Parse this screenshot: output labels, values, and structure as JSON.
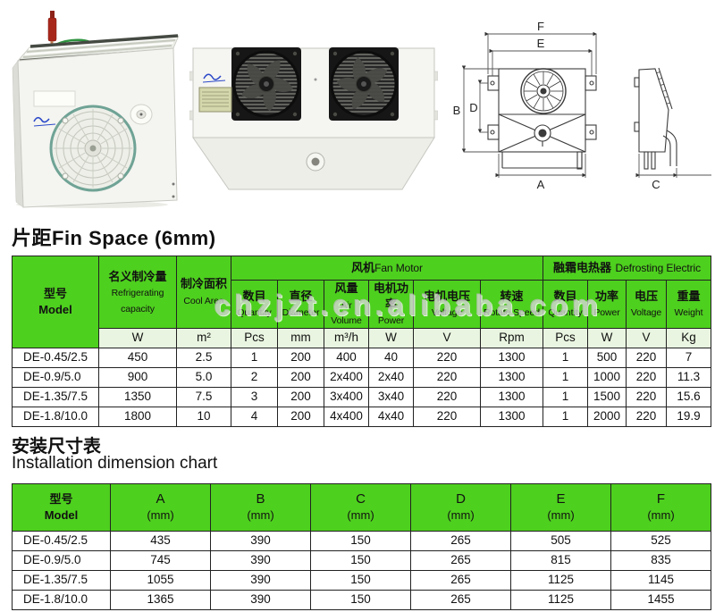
{
  "watermark": "chzjzt.en.alibaba.com",
  "colors": {
    "header_green": "#4ed01e",
    "units_green": "#e9f5e0",
    "logo_blue": "#2b49c8"
  },
  "section_fin": {
    "title": "片距Fin Space (6mm)"
  },
  "section_install": {
    "title_cn": "安装尺寸表",
    "title_en": "Installation dimension chart"
  },
  "diagram": {
    "labels": {
      "a": "A",
      "b": "B",
      "c": "C",
      "d": "D",
      "e": "E",
      "f": "F"
    }
  },
  "table1": {
    "model": {
      "cn": "型号",
      "en": "Model"
    },
    "refrigerating": {
      "cn": "名义制冷量",
      "en1": "Refrigerating",
      "en2": "capacity",
      "unit": "W"
    },
    "cool_area": {
      "cn": "制冷面积",
      "en": "Cool Area",
      "unit": "m²"
    },
    "group_fan": {
      "cn": "风机",
      "en": "Fan Motor"
    },
    "group_defrost": {
      "cn": "融霜电热器",
      "en": "Defrosting Electric"
    },
    "columns": [
      {
        "cn": "数目",
        "en": "Quantity",
        "unit": "Pcs"
      },
      {
        "cn": "直径",
        "en": "Diameter",
        "unit": "mm"
      },
      {
        "cn": "风量",
        "en": "Air Volume",
        "unit": "m³/h"
      },
      {
        "cn": "电机功率",
        "en": "Power",
        "unit": "W"
      },
      {
        "cn": "电机电压",
        "en": "Voltage",
        "unit": "V"
      },
      {
        "cn": "转速",
        "en": "Rotate Speed",
        "unit": "Rpm"
      },
      {
        "cn": "数目",
        "en": "Quantity",
        "unit": "Pcs"
      },
      {
        "cn": "功率",
        "en": "Power",
        "unit": "W"
      },
      {
        "cn": "电压",
        "en": "Voltage",
        "unit": "V"
      },
      {
        "cn": "重量",
        "en": "Weight",
        "unit": "Kg"
      }
    ],
    "rows": [
      [
        "DE-0.45/2.5",
        "450",
        "2.5",
        "1",
        "200",
        "400",
        "40",
        "220",
        "1300",
        "1",
        "500",
        "220",
        "7"
      ],
      [
        "DE-0.9/5.0",
        "900",
        "5.0",
        "2",
        "200",
        "2x400",
        "2x40",
        "220",
        "1300",
        "1",
        "1000",
        "220",
        "11.3"
      ],
      [
        "DE-1.35/7.5",
        "1350",
        "7.5",
        "3",
        "200",
        "3x400",
        "3x40",
        "220",
        "1300",
        "1",
        "1500",
        "220",
        "15.6"
      ],
      [
        "DE-1.8/10.0",
        "1800",
        "10",
        "4",
        "200",
        "4x400",
        "4x40",
        "220",
        "1300",
        "1",
        "2000",
        "220",
        "19.9"
      ]
    ]
  },
  "table2": {
    "columns": [
      {
        "l1": "型号",
        "l2": "Model"
      },
      {
        "l1": "A",
        "l2": "(mm)"
      },
      {
        "l1": "B",
        "l2": "(mm)"
      },
      {
        "l1": "C",
        "l2": "(mm)"
      },
      {
        "l1": "D",
        "l2": "(mm)"
      },
      {
        "l1": "E",
        "l2": "(mm)"
      },
      {
        "l1": "F",
        "l2": "(mm)"
      }
    ],
    "rows": [
      [
        "DE-0.45/2.5",
        "435",
        "390",
        "150",
        "265",
        "505",
        "525"
      ],
      [
        "DE-0.9/5.0",
        "745",
        "390",
        "150",
        "265",
        "815",
        "835"
      ],
      [
        "DE-1.35/7.5",
        "1055",
        "390",
        "150",
        "265",
        "1125",
        "1145"
      ],
      [
        "DE-1.8/10.0",
        "1365",
        "390",
        "150",
        "265",
        "1125",
        "1455"
      ]
    ]
  }
}
